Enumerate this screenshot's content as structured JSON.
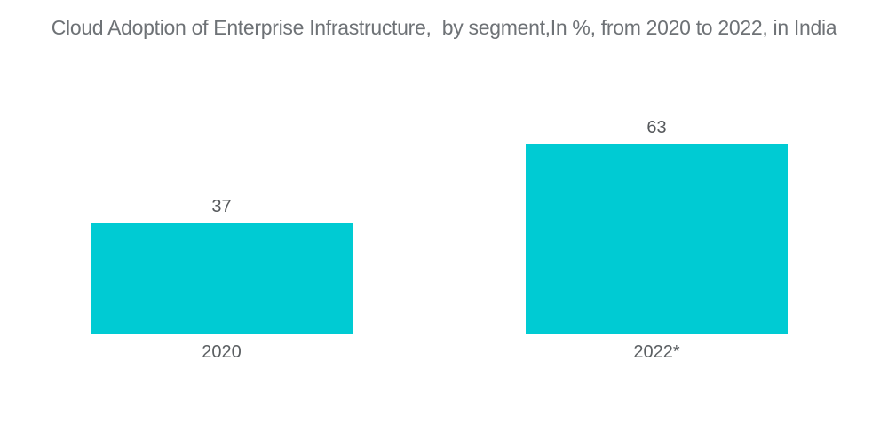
{
  "title": "Cloud Adoption of Enterprise Infrastructure,  by segment,In %, from 2020 to 2022, in India",
  "colors": {
    "bar_fill": "#00cbd3",
    "title_text": "#6e7276",
    "label_text": "#55585b",
    "background": "#ffffff"
  },
  "chart_data": {
    "type": "bar",
    "title": "Cloud Adoption of Enterprise Infrastructure,  by segment,In %, from 2020 to 2022, in India",
    "categories": [
      "2020",
      "2022*"
    ],
    "values": [
      37,
      63
    ],
    "value_labels": [
      "37",
      "63"
    ],
    "xlabel": "",
    "ylabel": "",
    "ylim": [
      0,
      70
    ],
    "grid": false,
    "legend": false,
    "bar_color": "#00cbd3",
    "orientation": "vertical"
  }
}
